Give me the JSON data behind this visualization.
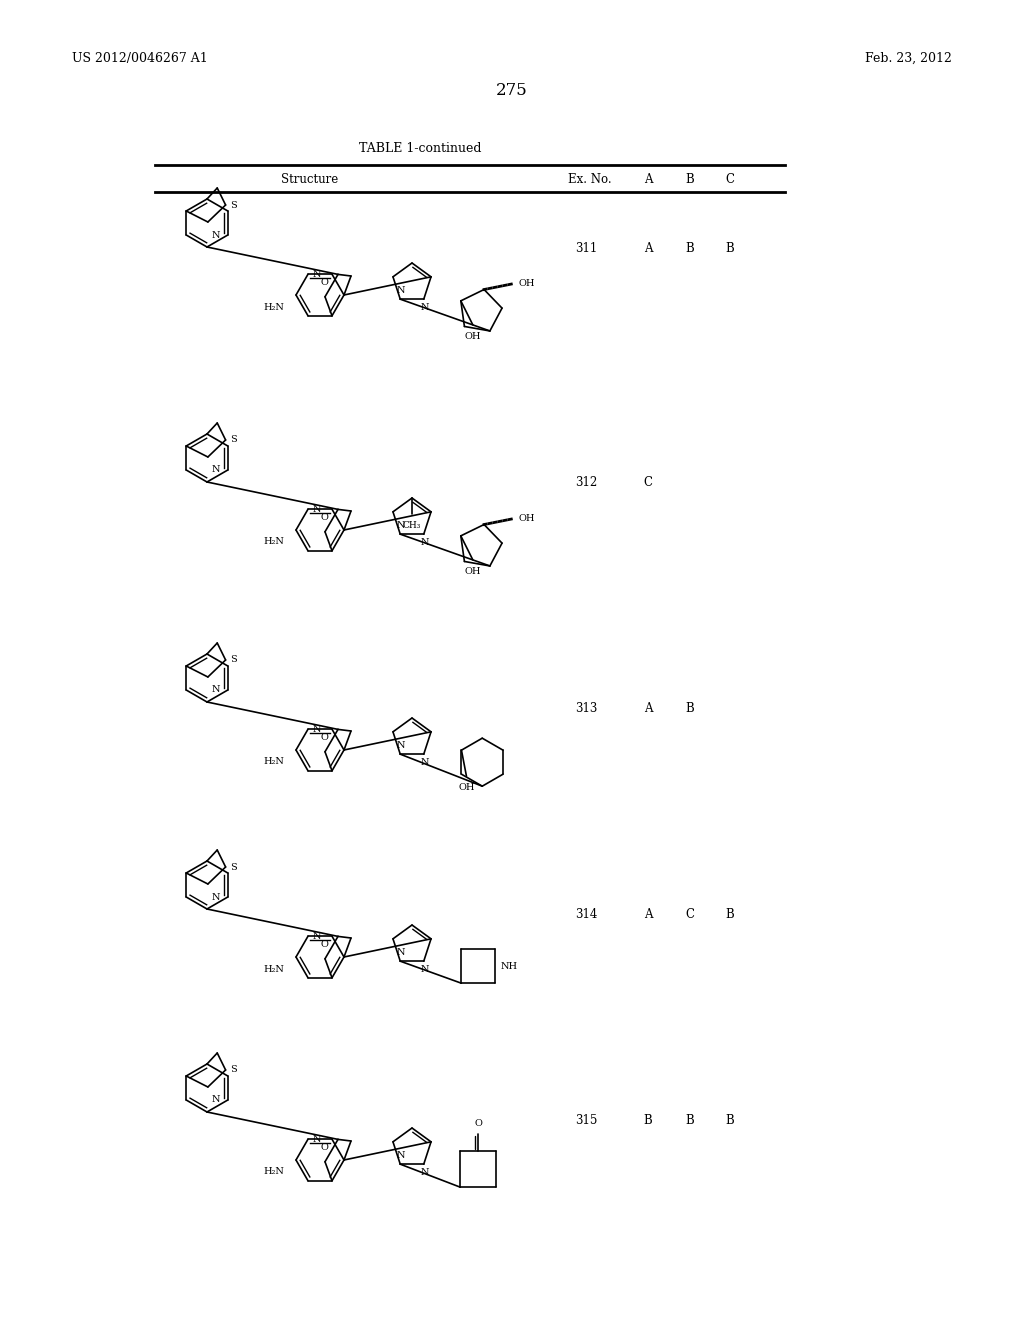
{
  "page_header_left": "US 2012/0046267 A1",
  "page_header_right": "Feb. 23, 2012",
  "page_number": "275",
  "table_title": "TABLE 1-continued",
  "table_headers": [
    "Structure",
    "Ex. No.",
    "A",
    "B",
    "C"
  ],
  "entries": [
    {
      "ex_no": "311",
      "A": "A",
      "B": "B",
      "C": "B"
    },
    {
      "ex_no": "312",
      "A": "",
      "B": "C",
      "C": ""
    },
    {
      "ex_no": "313",
      "A": "A",
      "B": "B",
      "C": ""
    },
    {
      "ex_no": "314",
      "A": "A",
      "B": "C",
      "C": "B"
    },
    {
      "ex_no": "315",
      "A": "B",
      "B": "B",
      "C": "B"
    }
  ],
  "background_color": "#ffffff",
  "text_color": "#000000"
}
